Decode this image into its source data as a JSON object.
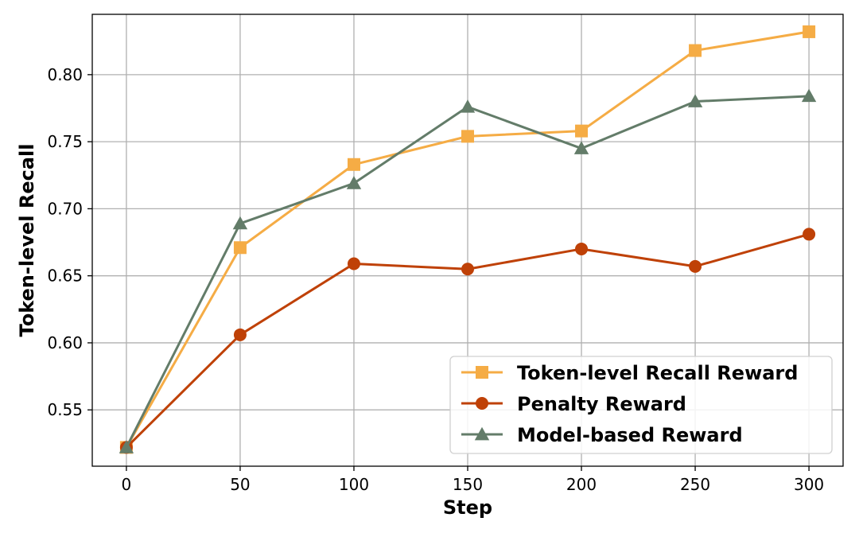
{
  "chart_data": {
    "type": "line",
    "xlabel": "Step",
    "ylabel": "Token-level Recall",
    "x": [
      0,
      50,
      100,
      150,
      200,
      250,
      300
    ],
    "xticks": [
      "0",
      "50",
      "100",
      "150",
      "200",
      "250",
      "300"
    ],
    "yticks": [
      "0.55",
      "0.60",
      "0.65",
      "0.70",
      "0.75",
      "0.80"
    ],
    "xlim": [
      -15,
      315
    ],
    "ylim": [
      0.508,
      0.845
    ],
    "grid": true,
    "legend_position": "lower-right",
    "series": [
      {
        "name": "Token-level Recall Reward",
        "values": [
          0.522,
          0.671,
          0.733,
          0.754,
          0.758,
          0.818,
          0.832
        ],
        "color": "#f5ac45",
        "marker": "square"
      },
      {
        "name": "Penalty Reward",
        "values": [
          0.522,
          0.606,
          0.659,
          0.655,
          0.67,
          0.657,
          0.681
        ],
        "color": "#bf4107",
        "marker": "circle"
      },
      {
        "name": "Model-based Reward",
        "values": [
          0.522,
          0.689,
          0.719,
          0.776,
          0.745,
          0.78,
          0.784
        ],
        "color": "#637c69",
        "marker": "triangle"
      }
    ]
  }
}
